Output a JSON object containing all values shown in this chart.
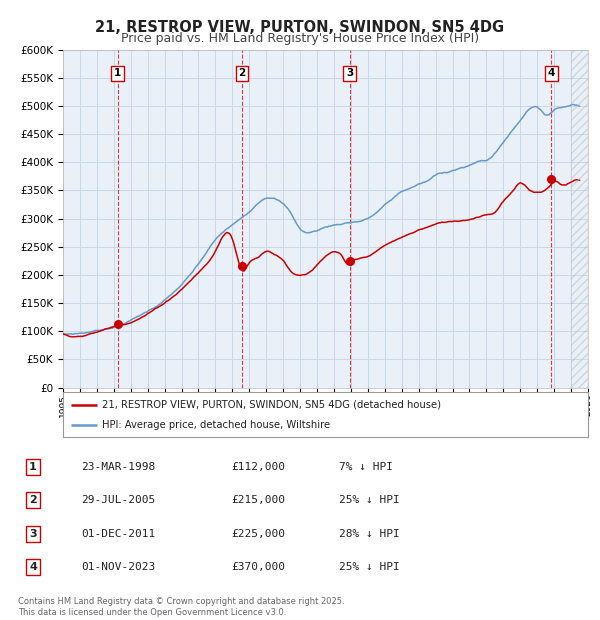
{
  "title": "21, RESTROP VIEW, PURTON, SWINDON, SN5 4DG",
  "subtitle": "Price paid vs. HM Land Registry's House Price Index (HPI)",
  "legend_label_red": "21, RESTROP VIEW, PURTON, SWINDON, SN5 4DG (detached house)",
  "legend_label_blue": "HPI: Average price, detached house, Wiltshire",
  "ylabel_ticks": [
    "£0",
    "£50K",
    "£100K",
    "£150K",
    "£200K",
    "£250K",
    "£300K",
    "£350K",
    "£400K",
    "£450K",
    "£500K",
    "£550K",
    "£600K"
  ],
  "ytick_values": [
    0,
    50000,
    100000,
    150000,
    200000,
    250000,
    300000,
    350000,
    400000,
    450000,
    500000,
    550000,
    600000
  ],
  "xmin": 1995.0,
  "xmax": 2026.0,
  "ymin": 0,
  "ymax": 600000,
  "red_color": "#cc0000",
  "blue_color": "#6699cc",
  "grid_color": "#c8d8e8",
  "bg_color": "#eaf0f8",
  "sale_markers": [
    {
      "year": 1998.22,
      "price": 112000,
      "label": "1"
    },
    {
      "year": 2005.57,
      "price": 215000,
      "label": "2"
    },
    {
      "year": 2011.92,
      "price": 225000,
      "label": "3"
    },
    {
      "year": 2023.83,
      "price": 370000,
      "label": "4"
    }
  ],
  "vline_years": [
    1998.22,
    2005.57,
    2011.92,
    2023.83
  ],
  "table_rows": [
    [
      "1",
      "23-MAR-1998",
      "£112,000",
      "7% ↓ HPI"
    ],
    [
      "2",
      "29-JUL-2005",
      "£215,000",
      "25% ↓ HPI"
    ],
    [
      "3",
      "01-DEC-2011",
      "£225,000",
      "28% ↓ HPI"
    ],
    [
      "4",
      "01-NOV-2023",
      "£370,000",
      "25% ↓ HPI"
    ]
  ],
  "footnote": "Contains HM Land Registry data © Crown copyright and database right 2025.\nThis data is licensed under the Open Government Licence v3.0.",
  "title_fontsize": 10.5,
  "subtitle_fontsize": 9.0,
  "hpi_keypoints_x": [
    1995.0,
    1996.0,
    1997.0,
    1998.0,
    1999.0,
    2000.0,
    2001.0,
    2002.0,
    2003.0,
    2004.0,
    2005.0,
    2006.0,
    2007.0,
    2007.75,
    2008.5,
    2009.0,
    2009.5,
    2010.0,
    2010.5,
    2011.0,
    2011.5,
    2012.0,
    2012.5,
    2013.0,
    2013.5,
    2014.0,
    2014.5,
    2015.0,
    2015.5,
    2016.0,
    2016.5,
    2017.0,
    2017.5,
    2018.0,
    2018.5,
    2019.0,
    2019.5,
    2020.0,
    2020.5,
    2021.0,
    2021.5,
    2022.0,
    2022.5,
    2023.0,
    2023.5,
    2024.0,
    2024.5,
    2025.0,
    2025.5
  ],
  "hpi_keypoints_y": [
    95000,
    97000,
    102000,
    110000,
    122000,
    138000,
    158000,
    185000,
    220000,
    262000,
    288000,
    312000,
    340000,
    335000,
    310000,
    285000,
    278000,
    282000,
    288000,
    292000,
    295000,
    298000,
    300000,
    305000,
    315000,
    328000,
    340000,
    352000,
    358000,
    365000,
    370000,
    380000,
    385000,
    390000,
    395000,
    398000,
    405000,
    408000,
    420000,
    440000,
    460000,
    480000,
    500000,
    505000,
    490000,
    500000,
    505000,
    510000,
    508000
  ],
  "prop_keypoints_x": [
    1995.0,
    1996.0,
    1997.0,
    1998.22,
    1999.0,
    2000.0,
    2001.0,
    2002.0,
    2003.0,
    2004.0,
    2005.0,
    2005.57,
    2006.0,
    2006.5,
    2007.0,
    2007.5,
    2008.0,
    2008.5,
    2009.0,
    2009.5,
    2010.0,
    2010.5,
    2011.0,
    2011.5,
    2011.92,
    2012.0,
    2012.5,
    2013.0,
    2013.5,
    2014.0,
    2014.5,
    2015.0,
    2015.5,
    2016.0,
    2016.5,
    2017.0,
    2017.5,
    2018.0,
    2018.5,
    2019.0,
    2019.5,
    2020.0,
    2020.5,
    2021.0,
    2021.5,
    2022.0,
    2022.5,
    2023.0,
    2023.83,
    2024.0,
    2024.5,
    2025.0,
    2025.5
  ],
  "prop_keypoints_y": [
    95000,
    93000,
    100000,
    112000,
    120000,
    135000,
    155000,
    180000,
    210000,
    248000,
    270000,
    215000,
    230000,
    240000,
    250000,
    245000,
    235000,
    215000,
    210000,
    215000,
    228000,
    242000,
    250000,
    240000,
    225000,
    228000,
    235000,
    240000,
    248000,
    258000,
    265000,
    272000,
    278000,
    285000,
    290000,
    295000,
    298000,
    300000,
    302000,
    305000,
    310000,
    315000,
    320000,
    340000,
    355000,
    370000,
    360000,
    355000,
    370000,
    375000,
    370000,
    375000,
    378000
  ]
}
